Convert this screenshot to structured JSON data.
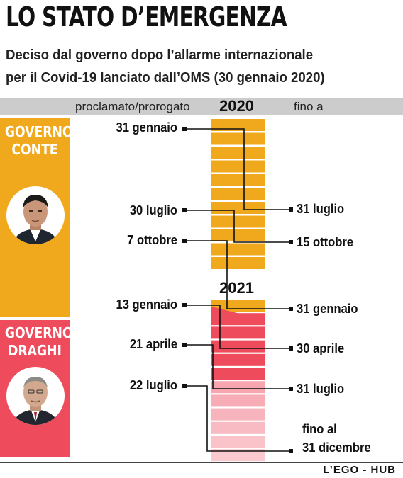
{
  "title": "LO STATO D’EMERGENZA",
  "subtitle_line1": "Deciso dal governo dopo l’allarme internazionale",
  "subtitle_line2": "per il Covid-19 lanciato dall’OMS (30 gennaio 2020)",
  "header": {
    "proclaimed_label": "proclamato/prorogato",
    "year_2020": "2020",
    "until_label": "fino a"
  },
  "year_2021": "2021",
  "governments": [
    {
      "name_line1": "GOVERNO",
      "name_line2": "CONTE",
      "color": "#f0a81c"
    },
    {
      "name_line1": "GOVERNO",
      "name_line2": "DRAGHI",
      "color": "#ee4b5c"
    }
  ],
  "proclaimed_dates": [
    "31 gennaio",
    "30 luglio",
    "7 ottobre",
    "13 gennaio",
    "21 aprile",
    "22 luglio"
  ],
  "until_dates": [
    "31 luglio",
    "15 ottobre",
    "31 gennaio",
    "30 aprile",
    "31 luglio"
  ],
  "final_until": {
    "line1": "fino al",
    "line2": "31 dicembre"
  },
  "credit": "L’EGO - HUB",
  "colors": {
    "conte": "#f0a81c",
    "draghi": "#ee4b5c",
    "draghi_light": "#f7a6b0",
    "header_bar": "#cccccc"
  }
}
